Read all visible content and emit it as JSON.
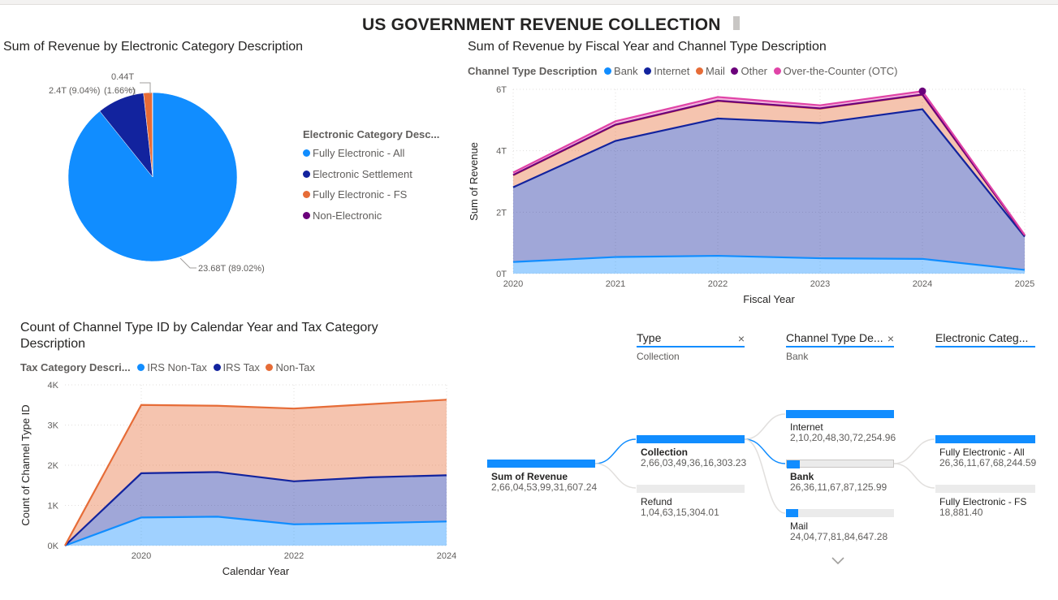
{
  "title": "US GOVERNMENT REVENUE COLLECTION",
  "colors": {
    "bank": "#118dff",
    "internet": "#12239e",
    "mail": "#e66c37",
    "other": "#6b007b",
    "otc": "#e044a7",
    "accent": "#118dff"
  },
  "pie_visual": {
    "title": "Sum of Revenue by Electronic Category Description",
    "legend_title": "Electronic Category Desc...",
    "labels": {
      "l1": "0.44T",
      "l2": "2.4T (9.04%)",
      "l3": "(1.66%)",
      "l4": "23.68T (89.02%)"
    },
    "legend": [
      "Fully Electronic - All",
      "Electronic Settlement",
      "Fully Electronic - FS",
      "Non-Electronic"
    ]
  },
  "area1": {
    "title": "Sum of Revenue by Fiscal Year and Channel Type Description",
    "legend_title": "Channel Type Description",
    "legend": [
      "Bank",
      "Internet",
      "Mail",
      "Other",
      "Over-the-Counter (OTC)"
    ],
    "xlabel": "Fiscal Year",
    "ylabel": "Sum of Revenue",
    "yticks": [
      "0T",
      "2T",
      "4T",
      "6T"
    ],
    "xticks": [
      "2020",
      "2021",
      "2022",
      "2023",
      "2024",
      "2025"
    ]
  },
  "area2": {
    "title_line1": "Count of Channel Type ID by Calendar Year and Tax Category",
    "title_line2": "Description",
    "legend_title": "Tax Category Descri...",
    "legend": [
      "IRS Non-Tax",
      "IRS Tax",
      "Non-Tax"
    ],
    "xlabel": "Calendar Year",
    "ylabel": "Count of Channel Type ID",
    "yticks": [
      "0K",
      "1K",
      "2K",
      "3K",
      "4K"
    ],
    "xticks": [
      "2020",
      "2022",
      "2024"
    ]
  },
  "decomp": {
    "headers": [
      {
        "label": "Type",
        "sub": "Collection",
        "close": "×"
      },
      {
        "label": "Channel Type De...",
        "sub": "Bank",
        "close": "×"
      },
      {
        "label": "Electronic Categ...",
        "sub": ""
      }
    ],
    "root": {
      "name": "Sum of Revenue",
      "value": "2,66,04,53,99,31,607.24",
      "fill": 1.0
    },
    "level1": [
      {
        "name": "Collection",
        "value": "2,66,03,49,36,16,303.23",
        "fill": 1.0
      },
      {
        "name": "Refund",
        "value": "1,04,63,15,304.01",
        "fill": 0.0
      }
    ],
    "level2": [
      {
        "name": "Internet",
        "value": "2,10,20,48,30,72,254.96",
        "fill": 1.0
      },
      {
        "name": "Bank",
        "value": "26,36,11,67,87,125.99",
        "fill": 0.125
      },
      {
        "name": "Mail",
        "value": "24,04,77,81,84,647.28",
        "fill": 0.114
      }
    ],
    "level3": [
      {
        "name": "Fully Electronic - All",
        "value": "26,36,11,67,68,244.59",
        "fill": 1.0
      },
      {
        "name": "Fully Electronic - FS",
        "value": "18,881.40",
        "fill": 0.0
      }
    ],
    "expand_icon": "chevron-down-icon"
  },
  "chart_data": [
    {
      "type": "pie",
      "title": "Sum of Revenue by Electronic Category Description",
      "categories": [
        "Fully Electronic - All",
        "Electronic Settlement",
        "Fully Electronic - FS",
        "Non-Electronic"
      ],
      "values": [
        23.68,
        2.4,
        0.44,
        0.02
      ],
      "percents": [
        89.02,
        9.04,
        1.66,
        0.08
      ],
      "colors": [
        "#118dff",
        "#12239e",
        "#e66c37",
        "#6b007b"
      ],
      "legend": "right"
    },
    {
      "type": "area",
      "stacked": true,
      "title": "Sum of Revenue by Fiscal Year and Channel Type Description",
      "xlabel": "Fiscal Year",
      "ylabel": "Sum of Revenue",
      "x": [
        2020,
        2021,
        2022,
        2023,
        2024,
        2025
      ],
      "ylim": [
        0,
        6
      ],
      "yunit": "T",
      "series": [
        {
          "name": "Bank",
          "values": [
            0.38,
            0.54,
            0.58,
            0.5,
            0.48,
            0.12
          ]
        },
        {
          "name": "Internet",
          "values": [
            2.43,
            3.78,
            4.47,
            4.4,
            4.87,
            1.08
          ]
        },
        {
          "name": "Mail",
          "values": [
            0.39,
            0.52,
            0.57,
            0.47,
            0.47,
            0.04
          ]
        },
        {
          "name": "Other",
          "values": [
            0.01,
            0.01,
            0.01,
            0.01,
            0.01,
            0.0
          ]
        },
        {
          "name": "Over-the-Counter (OTC)",
          "values": [
            0.08,
            0.11,
            0.12,
            0.1,
            0.11,
            0.02
          ]
        }
      ],
      "grid": true,
      "legend": "top-left"
    },
    {
      "type": "area",
      "stacked": true,
      "title": "Count of Channel Type ID by Calendar Year and Tax Category Description",
      "xlabel": "Calendar Year",
      "ylabel": "Count of Channel Type ID",
      "x": [
        2019,
        2020,
        2021,
        2022,
        2023,
        2024
      ],
      "ylim": [
        0,
        4000
      ],
      "series": [
        {
          "name": "IRS Non-Tax",
          "values": [
            0,
            700,
            720,
            530,
            560,
            600
          ]
        },
        {
          "name": "IRS Tax",
          "values": [
            0,
            1100,
            1110,
            1070,
            1140,
            1150
          ]
        },
        {
          "name": "Non-Tax",
          "values": [
            0,
            1700,
            1650,
            1810,
            1820,
            1880
          ]
        }
      ],
      "grid": true,
      "legend": "top-left"
    }
  ]
}
